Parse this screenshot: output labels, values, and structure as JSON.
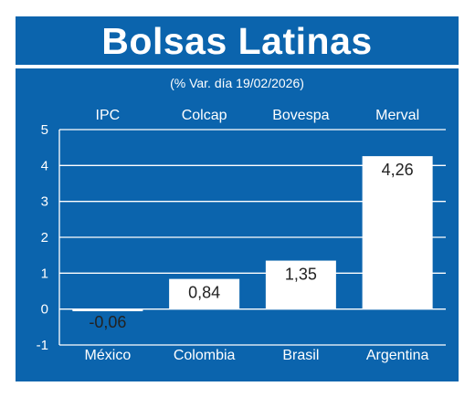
{
  "chart_data": {
    "type": "bar",
    "title": "Bolsas Latinas",
    "subtitle": "(% Var. día 19/02/2026)",
    "index_names": [
      "IPC",
      "Colcap",
      "Bovespa",
      "Merval"
    ],
    "categories": [
      "México",
      "Colombia",
      "Brasil",
      "Argentina"
    ],
    "values": [
      -0.06,
      0.84,
      1.35,
      4.26
    ],
    "value_labels": [
      "-0,06",
      "0,84",
      "1,35",
      "4,26"
    ],
    "ylim": [
      -1,
      5
    ],
    "yticks": [
      "-1",
      "0",
      "1",
      "2",
      "3",
      "4",
      "5"
    ],
    "grid": true
  },
  "colors": {
    "background": "#0b64ad",
    "bar": "#ffffff",
    "grid": "#ffffff"
  }
}
